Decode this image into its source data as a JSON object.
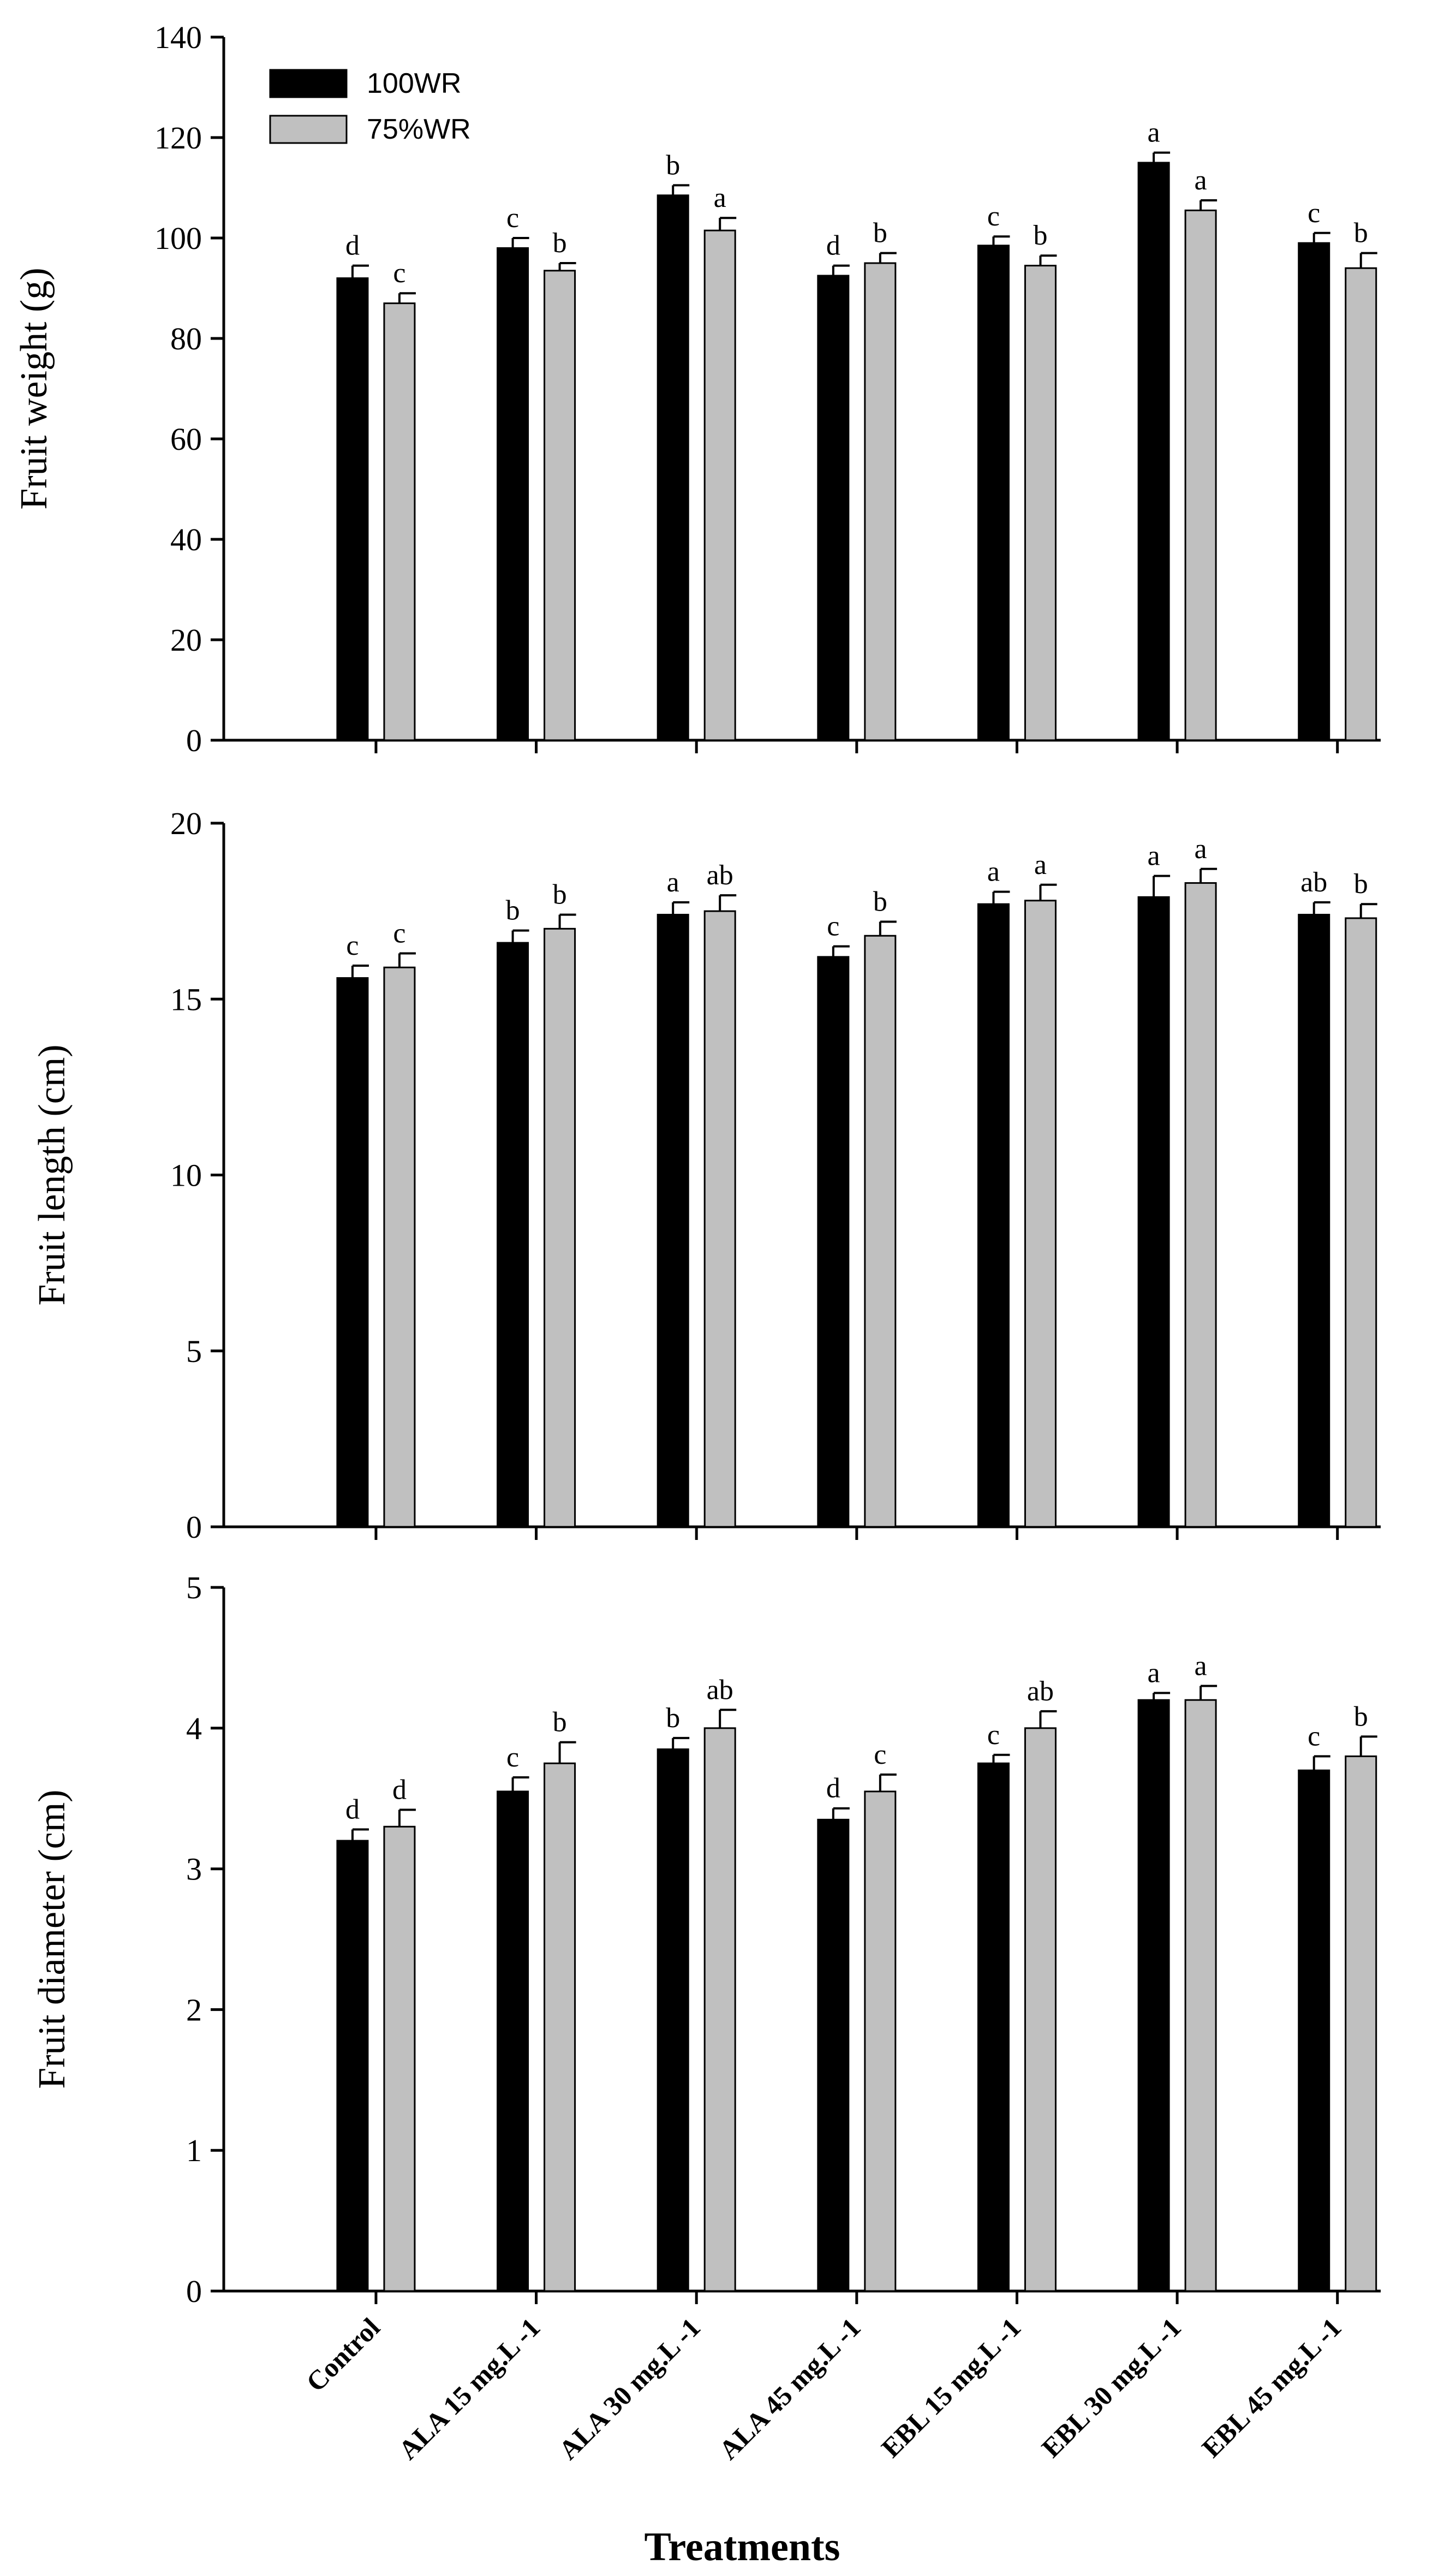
{
  "chart_data": [
    {
      "type": "bar",
      "ylabel": "Fruit weight (g)",
      "ylim": [
        0,
        140
      ],
      "yticks": [
        0,
        20,
        40,
        60,
        80,
        100,
        120,
        140
      ],
      "categories": [
        "Control",
        "ALA 15 mg.L -1",
        "ALA 30 mg.L -1",
        "ALA 45 mg.L -1",
        "EBL 15 mg.L -1",
        "EBL 30 mg.L -1",
        "EBL 45 mg.L -1"
      ],
      "series": [
        {
          "name": "100WR",
          "color": "#000000",
          "values": [
            92,
            98,
            108.5,
            92.5,
            98.5,
            115,
            99
          ],
          "errors": [
            2.5,
            2,
            2,
            2,
            1.8,
            2,
            2
          ],
          "letters": [
            "d",
            "c",
            "b",
            "d",
            "c",
            "a",
            "c"
          ]
        },
        {
          "name": "75%WR",
          "color": "#c0c0c0",
          "values": [
            87,
            93.5,
            101.5,
            95,
            94.5,
            105.5,
            94
          ],
          "errors": [
            2,
            1.5,
            2.5,
            2,
            2,
            2,
            3
          ],
          "letters": [
            "c",
            "b",
            "a",
            "b",
            "b",
            "a",
            "b"
          ]
        }
      ],
      "legend": "top-left",
      "grid": false
    },
    {
      "type": "bar",
      "ylabel": "Fruit length (cm)",
      "ylim": [
        0,
        20
      ],
      "yticks": [
        0,
        5,
        10,
        15,
        20
      ],
      "categories": [
        "Control",
        "ALA 15 mg.L -1",
        "ALA 30 mg.L -1",
        "ALA 45 mg.L -1",
        "EBL 15 mg.L -1",
        "EBL 30 mg.L -1",
        "EBL 45 mg.L -1"
      ],
      "series": [
        {
          "name": "100WR",
          "color": "#000000",
          "values": [
            15.6,
            16.6,
            17.4,
            16.2,
            17.7,
            17.9,
            17.4
          ],
          "errors": [
            0.35,
            0.35,
            0.35,
            0.3,
            0.35,
            0.6,
            0.35
          ],
          "letters": [
            "c",
            "b",
            "a",
            "c",
            "a",
            "a",
            "ab"
          ]
        },
        {
          "name": "75%WR",
          "color": "#c0c0c0",
          "values": [
            15.9,
            17.0,
            17.5,
            16.8,
            17.8,
            18.3,
            17.3
          ],
          "errors": [
            0.4,
            0.4,
            0.45,
            0.4,
            0.45,
            0.4,
            0.4
          ],
          "letters": [
            "c",
            "b",
            "ab",
            "b",
            "a",
            "a",
            "b"
          ]
        }
      ],
      "grid": false
    },
    {
      "type": "bar",
      "ylabel": "Fruit diameter (cm)",
      "xlabel": "Treatments",
      "ylim": [
        0,
        5
      ],
      "yticks": [
        0,
        1,
        2,
        3,
        4,
        5
      ],
      "categories": [
        "Control",
        "ALA 15 mg.L -1",
        "ALA 30 mg.L -1",
        "ALA 45 mg.L -1",
        "EBL 15 mg.L -1",
        "EBL 30 mg.L -1",
        "EBL 45 mg.L -1"
      ],
      "series": [
        {
          "name": "100WR",
          "color": "#000000",
          "values": [
            3.2,
            3.55,
            3.85,
            3.35,
            3.75,
            4.2,
            3.7
          ],
          "errors": [
            0.08,
            0.1,
            0.08,
            0.08,
            0.06,
            0.05,
            0.1
          ],
          "letters": [
            "d",
            "c",
            "b",
            "d",
            "c",
            "a",
            "c"
          ]
        },
        {
          "name": "75%WR",
          "color": "#c0c0c0",
          "values": [
            3.3,
            3.75,
            4.0,
            3.55,
            4.0,
            4.2,
            3.8
          ],
          "errors": [
            0.12,
            0.15,
            0.13,
            0.12,
            0.12,
            0.1,
            0.14
          ],
          "letters": [
            "d",
            "b",
            "ab",
            "c",
            "ab",
            "a",
            "b"
          ]
        }
      ],
      "grid": false
    }
  ]
}
